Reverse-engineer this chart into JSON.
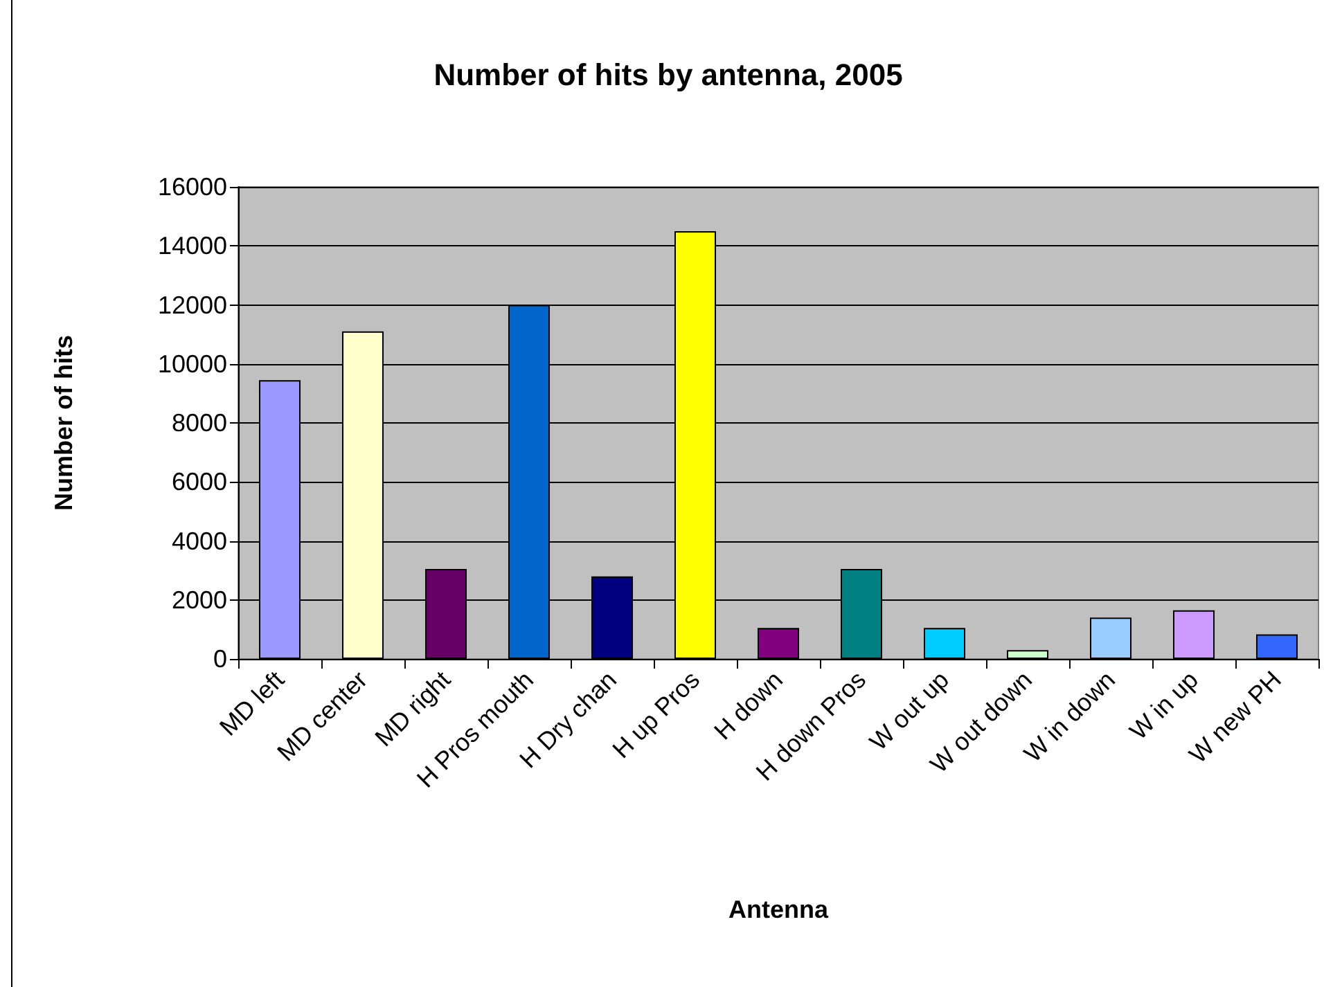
{
  "chart_data": {
    "type": "bar",
    "title": "Number of hits by antenna, 2005",
    "xlabel": "Antenna",
    "ylabel": "Number of hits",
    "categories": [
      "MD left",
      "MD center",
      "MD right",
      "H Pros mouth",
      "H Dry chan",
      "H up Pros",
      "H down",
      "H down Pros",
      "W out up",
      "W out down",
      "W in down",
      "W in up",
      "W new PH"
    ],
    "values": [
      9450,
      11100,
      3050,
      12000,
      2800,
      14500,
      1050,
      3050,
      1050,
      300,
      1400,
      1650,
      830
    ],
    "colors": [
      "#9999ff",
      "#ffffcc",
      "#660066",
      "#0066cc",
      "#000080",
      "#ffff00",
      "#800080",
      "#008080",
      "#00ccff",
      "#ccffcc",
      "#99ccff",
      "#cc99ff",
      "#3366ff"
    ],
    "ylim": [
      0,
      16000
    ],
    "yticks": [
      0,
      2000,
      4000,
      6000,
      8000,
      10000,
      12000,
      14000,
      16000
    ],
    "grid": "y"
  }
}
